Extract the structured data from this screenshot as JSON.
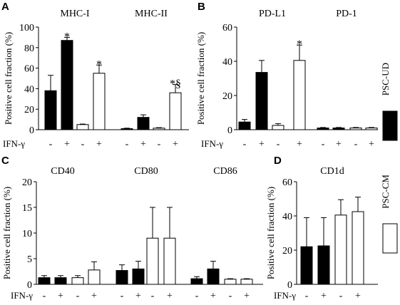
{
  "figure": {
    "legend": [
      {
        "name": "PSC-UD",
        "color": "#000000"
      },
      {
        "name": "PSC-CM",
        "color": "#ffffff"
      }
    ],
    "treatment_label": "IFN-γ",
    "plus": "+",
    "minus": "-"
  },
  "chart_data": [
    {
      "panel": "A",
      "type": "bar",
      "ylabel": "Positive cell fraction (%)",
      "ylim": [
        0,
        100
      ],
      "yticks": [
        "0",
        "20",
        "40",
        "60",
        "80",
        "100"
      ],
      "groups": [
        "MHC-I",
        "MHC-II"
      ],
      "conditions": [
        "-",
        "+",
        "-",
        "+"
      ],
      "series": [
        {
          "name": "PSC-UD",
          "values": [
            38,
            87,
            1,
            12
          ]
        },
        {
          "name": "PSC-CM",
          "values": [
            5,
            55,
            1.5,
            36
          ]
        }
      ],
      "errors": [
        {
          "name": "PSC-UD",
          "values": [
            15,
            3,
            0.5,
            2.5
          ]
        },
        {
          "name": "PSC-CM",
          "values": [
            0.5,
            8,
            0.5,
            8
          ]
        }
      ],
      "annotations": [
        {
          "group": "MHC-I",
          "bar": 2,
          "text": "*"
        },
        {
          "group": "MHC-I",
          "bar": 4,
          "text": "*"
        },
        {
          "group": "MHC-II",
          "bar": 4,
          "text": "*§"
        }
      ]
    },
    {
      "panel": "B",
      "type": "bar",
      "ylabel": "Positive cell fraction (%)",
      "ylim": [
        0,
        60
      ],
      "yticks": [
        "0",
        "20",
        "40",
        "60"
      ],
      "groups": [
        "PD-L1",
        "PD-1"
      ],
      "conditions": [
        "-",
        "+",
        "-",
        "+"
      ],
      "series": [
        {
          "name": "PSC-UD",
          "values": [
            4.5,
            33.5,
            1,
            1
          ]
        },
        {
          "name": "PSC-CM",
          "values": [
            2.5,
            40.5,
            1,
            1
          ]
        }
      ],
      "errors": [
        {
          "name": "PSC-UD",
          "values": [
            1.5,
            7,
            0.3,
            0.3
          ]
        },
        {
          "name": "PSC-CM",
          "values": [
            1,
            9,
            0.3,
            0.3
          ]
        }
      ],
      "annotations": [
        {
          "group": "PD-L1",
          "bar": 4,
          "text": "*"
        }
      ]
    },
    {
      "panel": "C",
      "type": "bar",
      "ylabel": "Positive cell fraction (%)",
      "ylim": [
        0,
        20
      ],
      "yticks": [
        "0",
        "5",
        "10",
        "15",
        "20"
      ],
      "groups": [
        "CD40",
        "CD80",
        "CD86"
      ],
      "conditions": [
        "-",
        "+",
        "-",
        "+"
      ],
      "series": [
        {
          "name": "PSC-UD",
          "values": [
            1.3,
            1.3,
            2.7,
            3,
            1.1,
            3
          ]
        },
        {
          "name": "PSC-CM",
          "values": [
            1.3,
            2.8,
            9,
            9,
            1,
            1
          ]
        }
      ],
      "errors": [
        {
          "name": "PSC-UD",
          "values": [
            0.4,
            0.4,
            1.1,
            1.5,
            0.4,
            1.5
          ]
        },
        {
          "name": "PSC-CM",
          "values": [
            0.4,
            1.6,
            6,
            6,
            0.1,
            0.1
          ]
        }
      ]
    },
    {
      "panel": "D",
      "type": "bar",
      "ylabel": "Positive cell fraction (%)",
      "ylim": [
        0,
        60
      ],
      "yticks": [
        "0",
        "20",
        "40",
        "60"
      ],
      "groups": [
        "CD1d"
      ],
      "conditions": [
        "-",
        "+",
        "-",
        "+"
      ],
      "series": [
        {
          "name": "PSC-UD",
          "values": [
            22,
            22.5
          ]
        },
        {
          "name": "PSC-CM",
          "values": [
            40.5,
            42.5
          ]
        }
      ],
      "errors": [
        {
          "name": "PSC-UD",
          "values": [
            17,
            16.5
          ]
        },
        {
          "name": "PSC-CM",
          "values": [
            9,
            8.5
          ]
        }
      ]
    }
  ]
}
